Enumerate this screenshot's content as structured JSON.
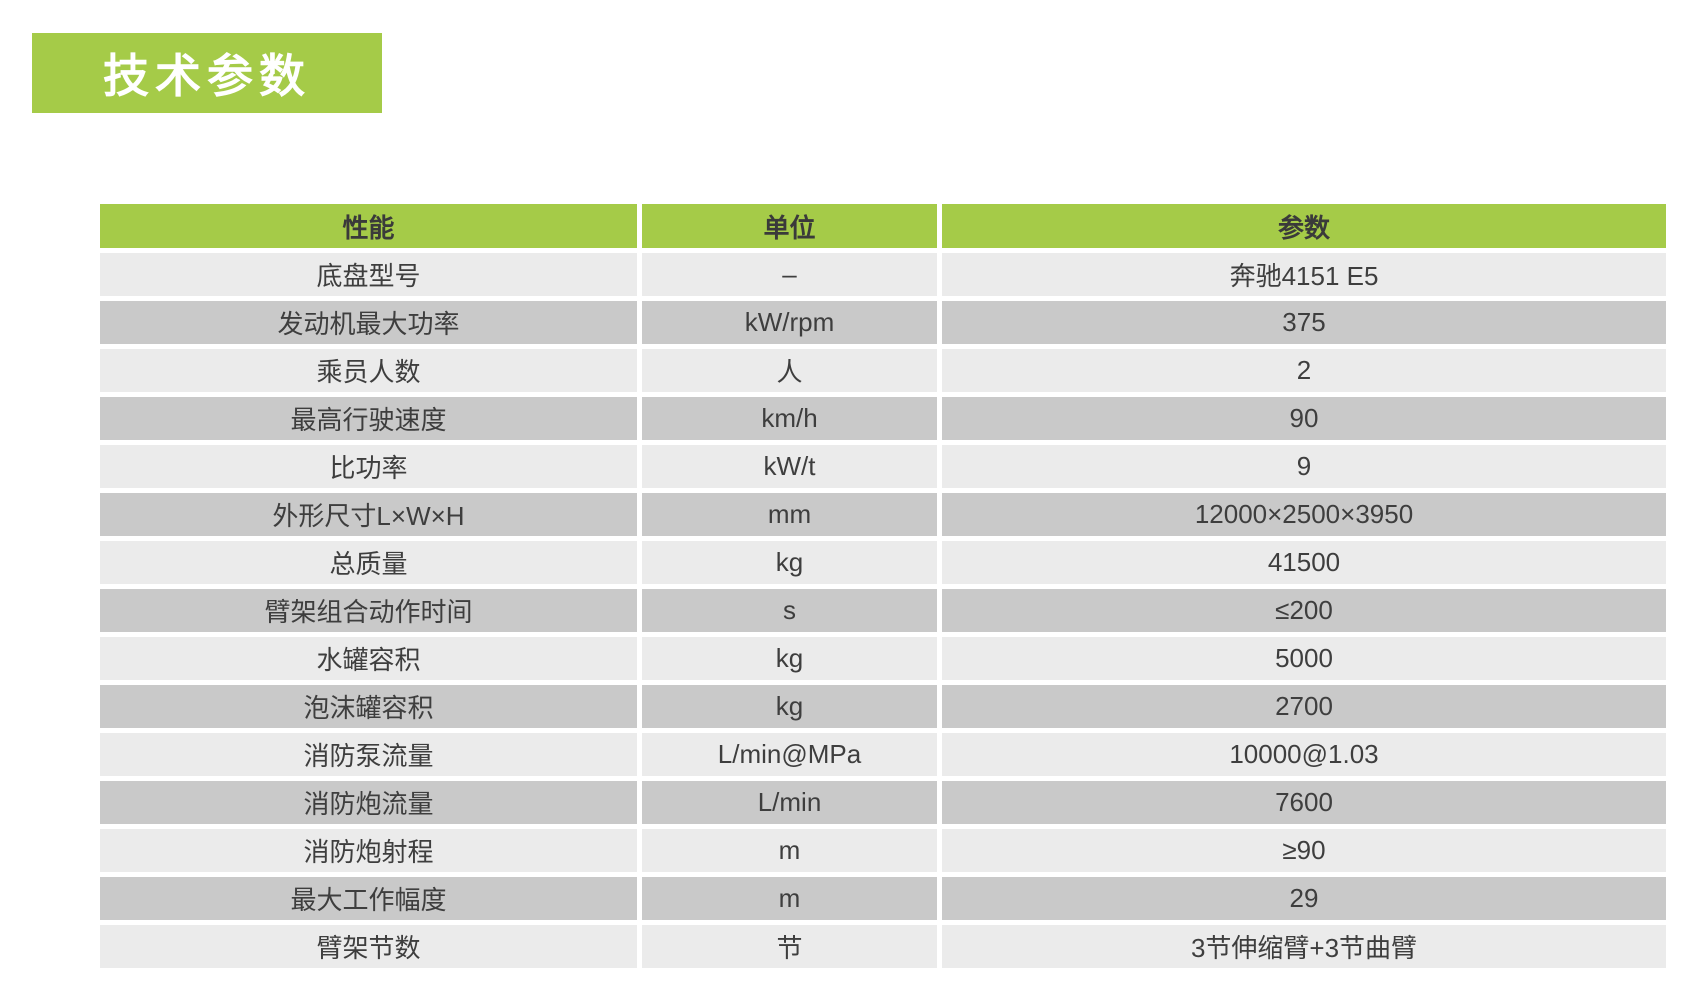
{
  "title": {
    "text": "技术参数",
    "bg_color": "#a5cb48",
    "text_color": "#ffffff"
  },
  "table": {
    "colors": {
      "header_bg": "#a5cb48",
      "row_light": "#ebebeb",
      "row_dark": "#c9c9c9",
      "text": "#3e3e3e"
    },
    "columns": [
      "性能",
      "单位",
      "参数"
    ],
    "rows": [
      [
        "底盘型号",
        "–",
        "奔驰4151 E5"
      ],
      [
        "发动机最大功率",
        "kW/rpm",
        "375"
      ],
      [
        "乘员人数",
        "人",
        "2"
      ],
      [
        "最高行驶速度",
        "km/h",
        "90"
      ],
      [
        "比功率",
        "kW/t",
        "9"
      ],
      [
        "外形尺寸L×W×H",
        "mm",
        "12000×2500×3950"
      ],
      [
        "总质量",
        "kg",
        "41500"
      ],
      [
        "臂架组合动作时间",
        "s",
        "≤200"
      ],
      [
        "水罐容积",
        "kg",
        "5000"
      ],
      [
        "泡沫罐容积",
        "kg",
        "2700"
      ],
      [
        "消防泵流量",
        "L/min@MPa",
        "10000@1.03"
      ],
      [
        "消防炮流量",
        "L/min",
        "7600"
      ],
      [
        "消防炮射程",
        "m",
        "≥90"
      ],
      [
        "最大工作幅度",
        "m",
        "29"
      ],
      [
        "臂架节数",
        "节",
        "3节伸缩臂+3节曲臂"
      ]
    ]
  }
}
